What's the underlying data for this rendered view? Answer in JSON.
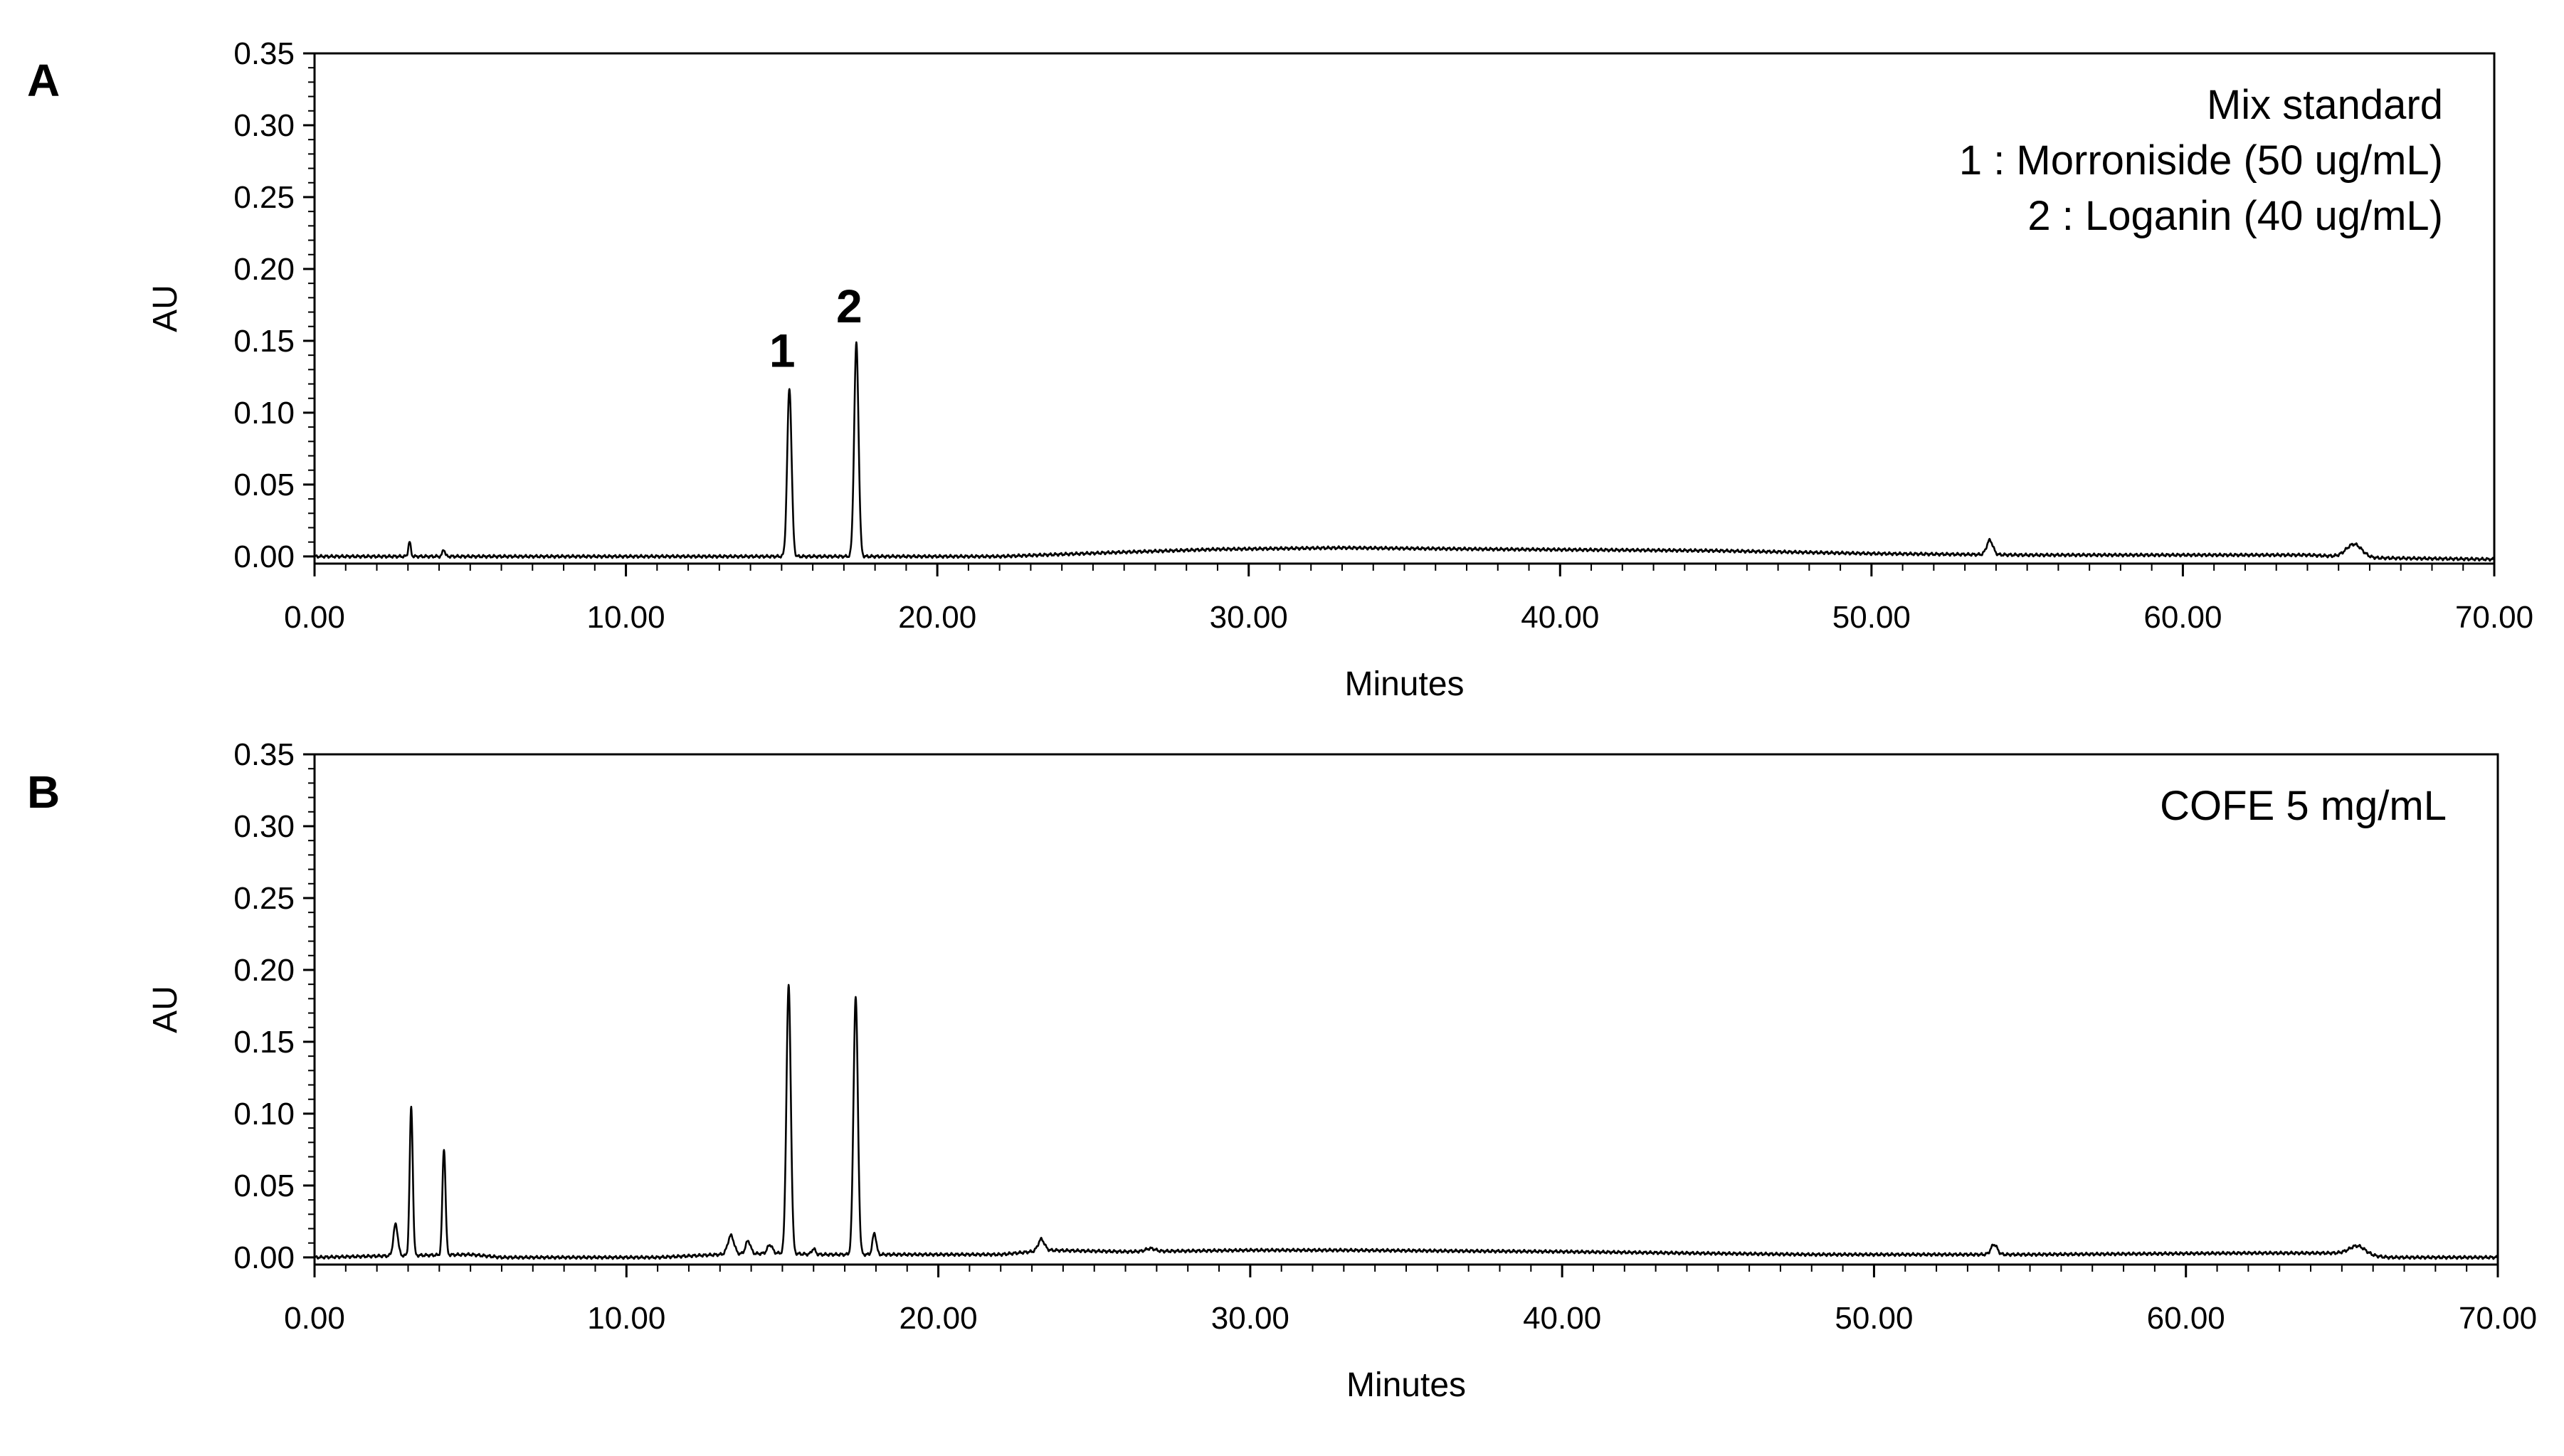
{
  "chart_data": [
    {
      "type": "line",
      "panel_label": "A",
      "xlabel": "Minutes",
      "ylabel": "AU",
      "xlim": [
        0,
        70
      ],
      "ylim": [
        -0.005,
        0.35
      ],
      "x_ticks": [
        "0.00",
        "10.00",
        "20.00",
        "30.00",
        "40.00",
        "50.00",
        "60.00",
        "70.00"
      ],
      "y_ticks": [
        "0.00",
        "0.05",
        "0.10",
        "0.15",
        "0.20",
        "0.25",
        "0.30",
        "0.35"
      ],
      "legend_lines": [
        "Mix standard",
        "1 : Morroniside  (50 ug/mL)",
        "2 : Loganin  (40 ug/mL)"
      ],
      "peak_labels": [
        {
          "text": "1",
          "x": 15.25,
          "y": 0.117
        },
        {
          "text": "2",
          "x": 17.4,
          "y": 0.148
        }
      ],
      "baseline": [
        [
          0,
          0.0
        ],
        [
          22,
          0.0
        ],
        [
          26,
          0.003
        ],
        [
          29,
          0.005
        ],
        [
          33,
          0.006
        ],
        [
          38,
          0.005
        ],
        [
          45,
          0.004
        ],
        [
          50,
          0.002
        ],
        [
          55,
          0.001
        ],
        [
          60,
          0.001
        ],
        [
          64,
          0.001
        ],
        [
          66,
          -0.001
        ],
        [
          70,
          -0.002
        ]
      ],
      "peaks": [
        {
          "rt": 3.05,
          "height": 0.01,
          "width": 0.04
        },
        {
          "rt": 4.15,
          "height": 0.005,
          "width": 0.04
        },
        {
          "rt": 15.25,
          "height": 0.117,
          "width": 0.07
        },
        {
          "rt": 17.4,
          "height": 0.148,
          "width": 0.07
        },
        {
          "rt": 53.8,
          "height": 0.01,
          "width": 0.1
        },
        {
          "rt": 65.5,
          "height": 0.009,
          "width": 0.25
        }
      ]
    },
    {
      "type": "line",
      "panel_label": "B",
      "xlabel": "Minutes",
      "ylabel": "AU",
      "xlim": [
        0,
        70
      ],
      "ylim": [
        -0.005,
        0.35
      ],
      "x_ticks": [
        "0.00",
        "10.00",
        "20.00",
        "30.00",
        "40.00",
        "50.00",
        "60.00",
        "70.00"
      ],
      "y_ticks": [
        "0.00",
        "0.05",
        "0.10",
        "0.15",
        "0.20",
        "0.25",
        "0.30",
        "0.35"
      ],
      "legend_lines": [
        "COFE 5 mg/mL"
      ],
      "peak_labels": [],
      "baseline": [
        [
          0,
          0.0
        ],
        [
          2.2,
          0.001
        ],
        [
          5,
          0.002
        ],
        [
          6,
          0.0
        ],
        [
          11,
          0.0
        ],
        [
          13,
          0.002
        ],
        [
          15,
          0.003
        ],
        [
          16,
          0.002
        ],
        [
          19,
          0.002
        ],
        [
          22,
          0.002
        ],
        [
          23.5,
          0.005
        ],
        [
          26,
          0.004
        ],
        [
          30,
          0.005
        ],
        [
          33,
          0.005
        ],
        [
          40,
          0.004
        ],
        [
          48,
          0.002
        ],
        [
          55,
          0.002
        ],
        [
          62,
          0.003
        ],
        [
          65,
          0.003
        ],
        [
          66.5,
          0.0
        ],
        [
          70,
          0.0
        ]
      ],
      "peaks": [
        {
          "rt": 2.6,
          "height": 0.022,
          "width": 0.07
        },
        {
          "rt": 3.1,
          "height": 0.103,
          "width": 0.05
        },
        {
          "rt": 4.15,
          "height": 0.074,
          "width": 0.05
        },
        {
          "rt": 13.35,
          "height": 0.013,
          "width": 0.1
        },
        {
          "rt": 13.9,
          "height": 0.009,
          "width": 0.08
        },
        {
          "rt": 14.6,
          "height": 0.006,
          "width": 0.08
        },
        {
          "rt": 15.2,
          "height": 0.186,
          "width": 0.07
        },
        {
          "rt": 16.0,
          "height": 0.004,
          "width": 0.06
        },
        {
          "rt": 17.35,
          "height": 0.179,
          "width": 0.07
        },
        {
          "rt": 17.95,
          "height": 0.015,
          "width": 0.06
        },
        {
          "rt": 23.3,
          "height": 0.008,
          "width": 0.1
        },
        {
          "rt": 26.8,
          "height": 0.002,
          "width": 0.15
        },
        {
          "rt": 53.85,
          "height": 0.007,
          "width": 0.1
        },
        {
          "rt": 65.5,
          "height": 0.006,
          "width": 0.25
        }
      ]
    }
  ]
}
